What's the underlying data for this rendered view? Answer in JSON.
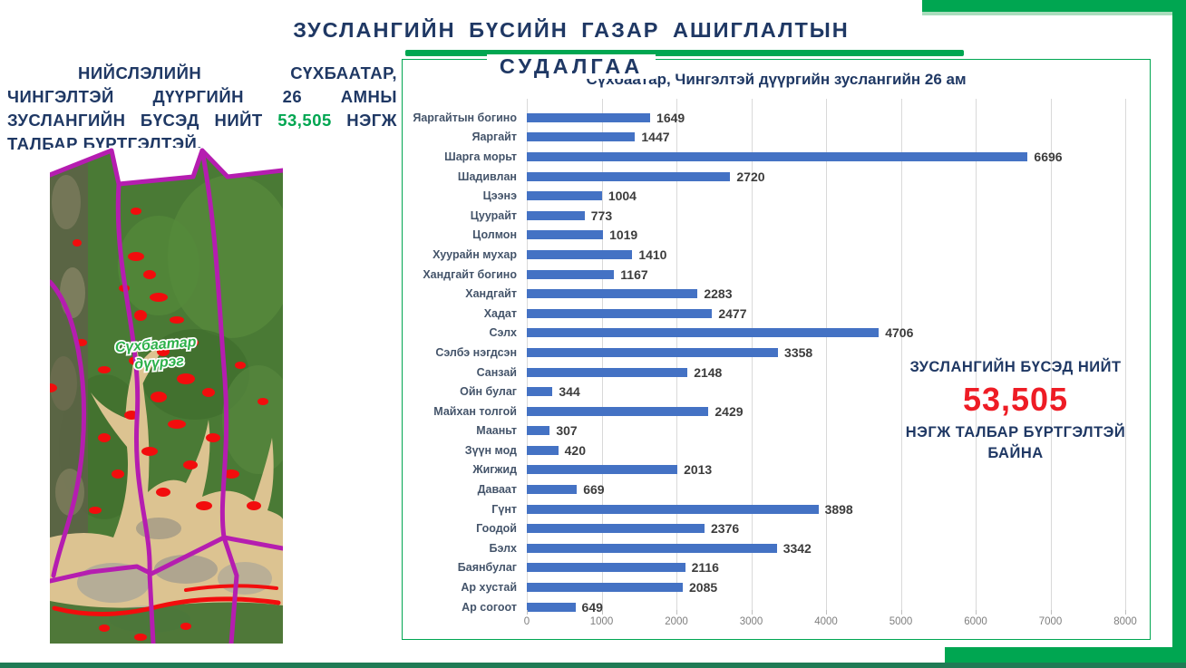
{
  "header": {
    "title_line1": "ЗУСЛАНГИЙН БҮСИЙН ГАЗАР АШИГЛАЛТЫН",
    "title_line2": "СУДАЛГАА"
  },
  "intro": {
    "text_before": "НИЙСЛЭЛИЙН СҮХБААТАР, ЧИНГЭЛТЭЙ ДҮҮРГИЙН 26 АМНЫ ЗУСЛАНГИЙН БҮСЭД НИЙТ ",
    "highlight": "53,505",
    "text_after": " НЭГЖ ТАЛБАР БҮРТГЭЛТЭЙ."
  },
  "map": {
    "label_line1": "Сүхбаатар",
    "label_line2": "дүүрэг"
  },
  "chart_data": {
    "type": "bar",
    "orientation": "horizontal",
    "title": "Сүхбаатар, Чингэлтэй дүүргийн зуслангийн 26 ам",
    "categories": [
      "Яаргайтын богино",
      "Яаргайт",
      "Шарга морьт",
      "Шадивлан",
      "Цээнэ",
      "Цуурайт",
      "Цолмон",
      "Хуурайн мухар",
      "Хандгайт богино",
      "Хандгайт",
      "Хадат",
      "Сэлх",
      "Сэлбэ нэгдсэн",
      "Санзай",
      "Ойн булаг",
      "Майхан толгой",
      "Мааньт",
      "Зүүн мод",
      "Жигжид",
      "Даваат",
      "Гүнт",
      "Гоодой",
      "Бэлх",
      "Баянбулаг",
      "Ар хустай",
      "Ар согоот"
    ],
    "values": [
      1649,
      1447,
      6696,
      2720,
      1004,
      773,
      1019,
      1410,
      1167,
      2283,
      2477,
      4706,
      3358,
      2148,
      344,
      2429,
      307,
      420,
      2013,
      669,
      3898,
      2376,
      3342,
      2116,
      2085,
      649
    ],
    "xlim": [
      0,
      8000
    ],
    "x_ticks": [
      0,
      1000,
      2000,
      3000,
      4000,
      5000,
      6000,
      7000,
      8000
    ],
    "grid": true,
    "data_labels": true,
    "bar_color": "#4472C4"
  },
  "callout": {
    "line1": "ЗУСЛАНГИЙН БҮСЭД НИЙТ",
    "number": "53,505",
    "line2": "НЭГЖ ТАЛБАР БҮРТГЭЛТЭЙ БАЙНА"
  },
  "colors": {
    "accent_green": "#00A651",
    "accent_green_light": "#A9DDBC",
    "bottom_line_teal": "#1F7B55",
    "navy": "#1F3864",
    "bar_blue": "#4472C4",
    "red": "#EE1C25",
    "gridline": "#D9D9D9",
    "axis_label_gray": "#7F7F7F",
    "category_label": "#44546A",
    "boundary_purple": "#B51DB0",
    "map_label_green": "#2DB14A"
  }
}
